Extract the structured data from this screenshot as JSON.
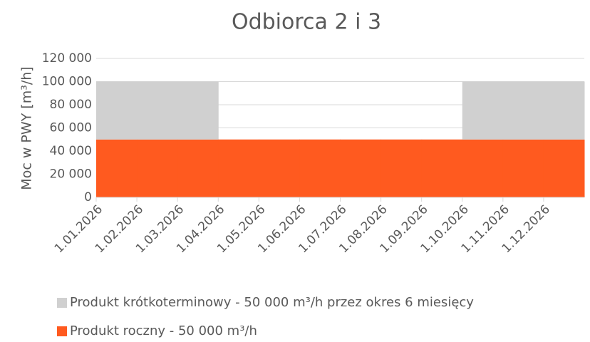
{
  "chart_data": {
    "type": "step-area",
    "title": "Odbiorca 2 i 3",
    "y_label": "Moc w PWY  [m³/h]",
    "categories": [
      "1.01.2026",
      "1.02.2026",
      "1.03.2026",
      "1.04.2026",
      "1.05.2026",
      "1.06.2026",
      "1.07.2026",
      "1.08.2026",
      "1.09.2026",
      "1.10.2026",
      "1.11.2026",
      "1.12.2026"
    ],
    "series": [
      {
        "name": "Produkt krótkoterminowy -  50 000 m³/h przez okres 6 miesięcy",
        "color": "#d0d0d0",
        "values": [
          50000,
          50000,
          50000,
          0,
          0,
          0,
          0,
          0,
          0,
          50000,
          50000,
          50000
        ]
      },
      {
        "name": "Produkt roczny -  50 000 m³/h",
        "color": "#ff5a1f",
        "values": [
          50000,
          50000,
          50000,
          50000,
          50000,
          50000,
          50000,
          50000,
          50000,
          50000,
          50000,
          50000
        ]
      }
    ],
    "ylim": [
      0,
      120000
    ],
    "yticks": [
      0,
      {
        "value": 20000,
        "label": "20 000"
      },
      {
        "value": 40000,
        "label": "40 000"
      },
      {
        "value": 60000,
        "label": "60 000"
      },
      {
        "value": 80000,
        "label": "80 000"
      },
      {
        "value": 100000,
        "label": "100 000"
      },
      {
        "value": 120000,
        "label": "120 000"
      }
    ],
    "grid": true
  }
}
